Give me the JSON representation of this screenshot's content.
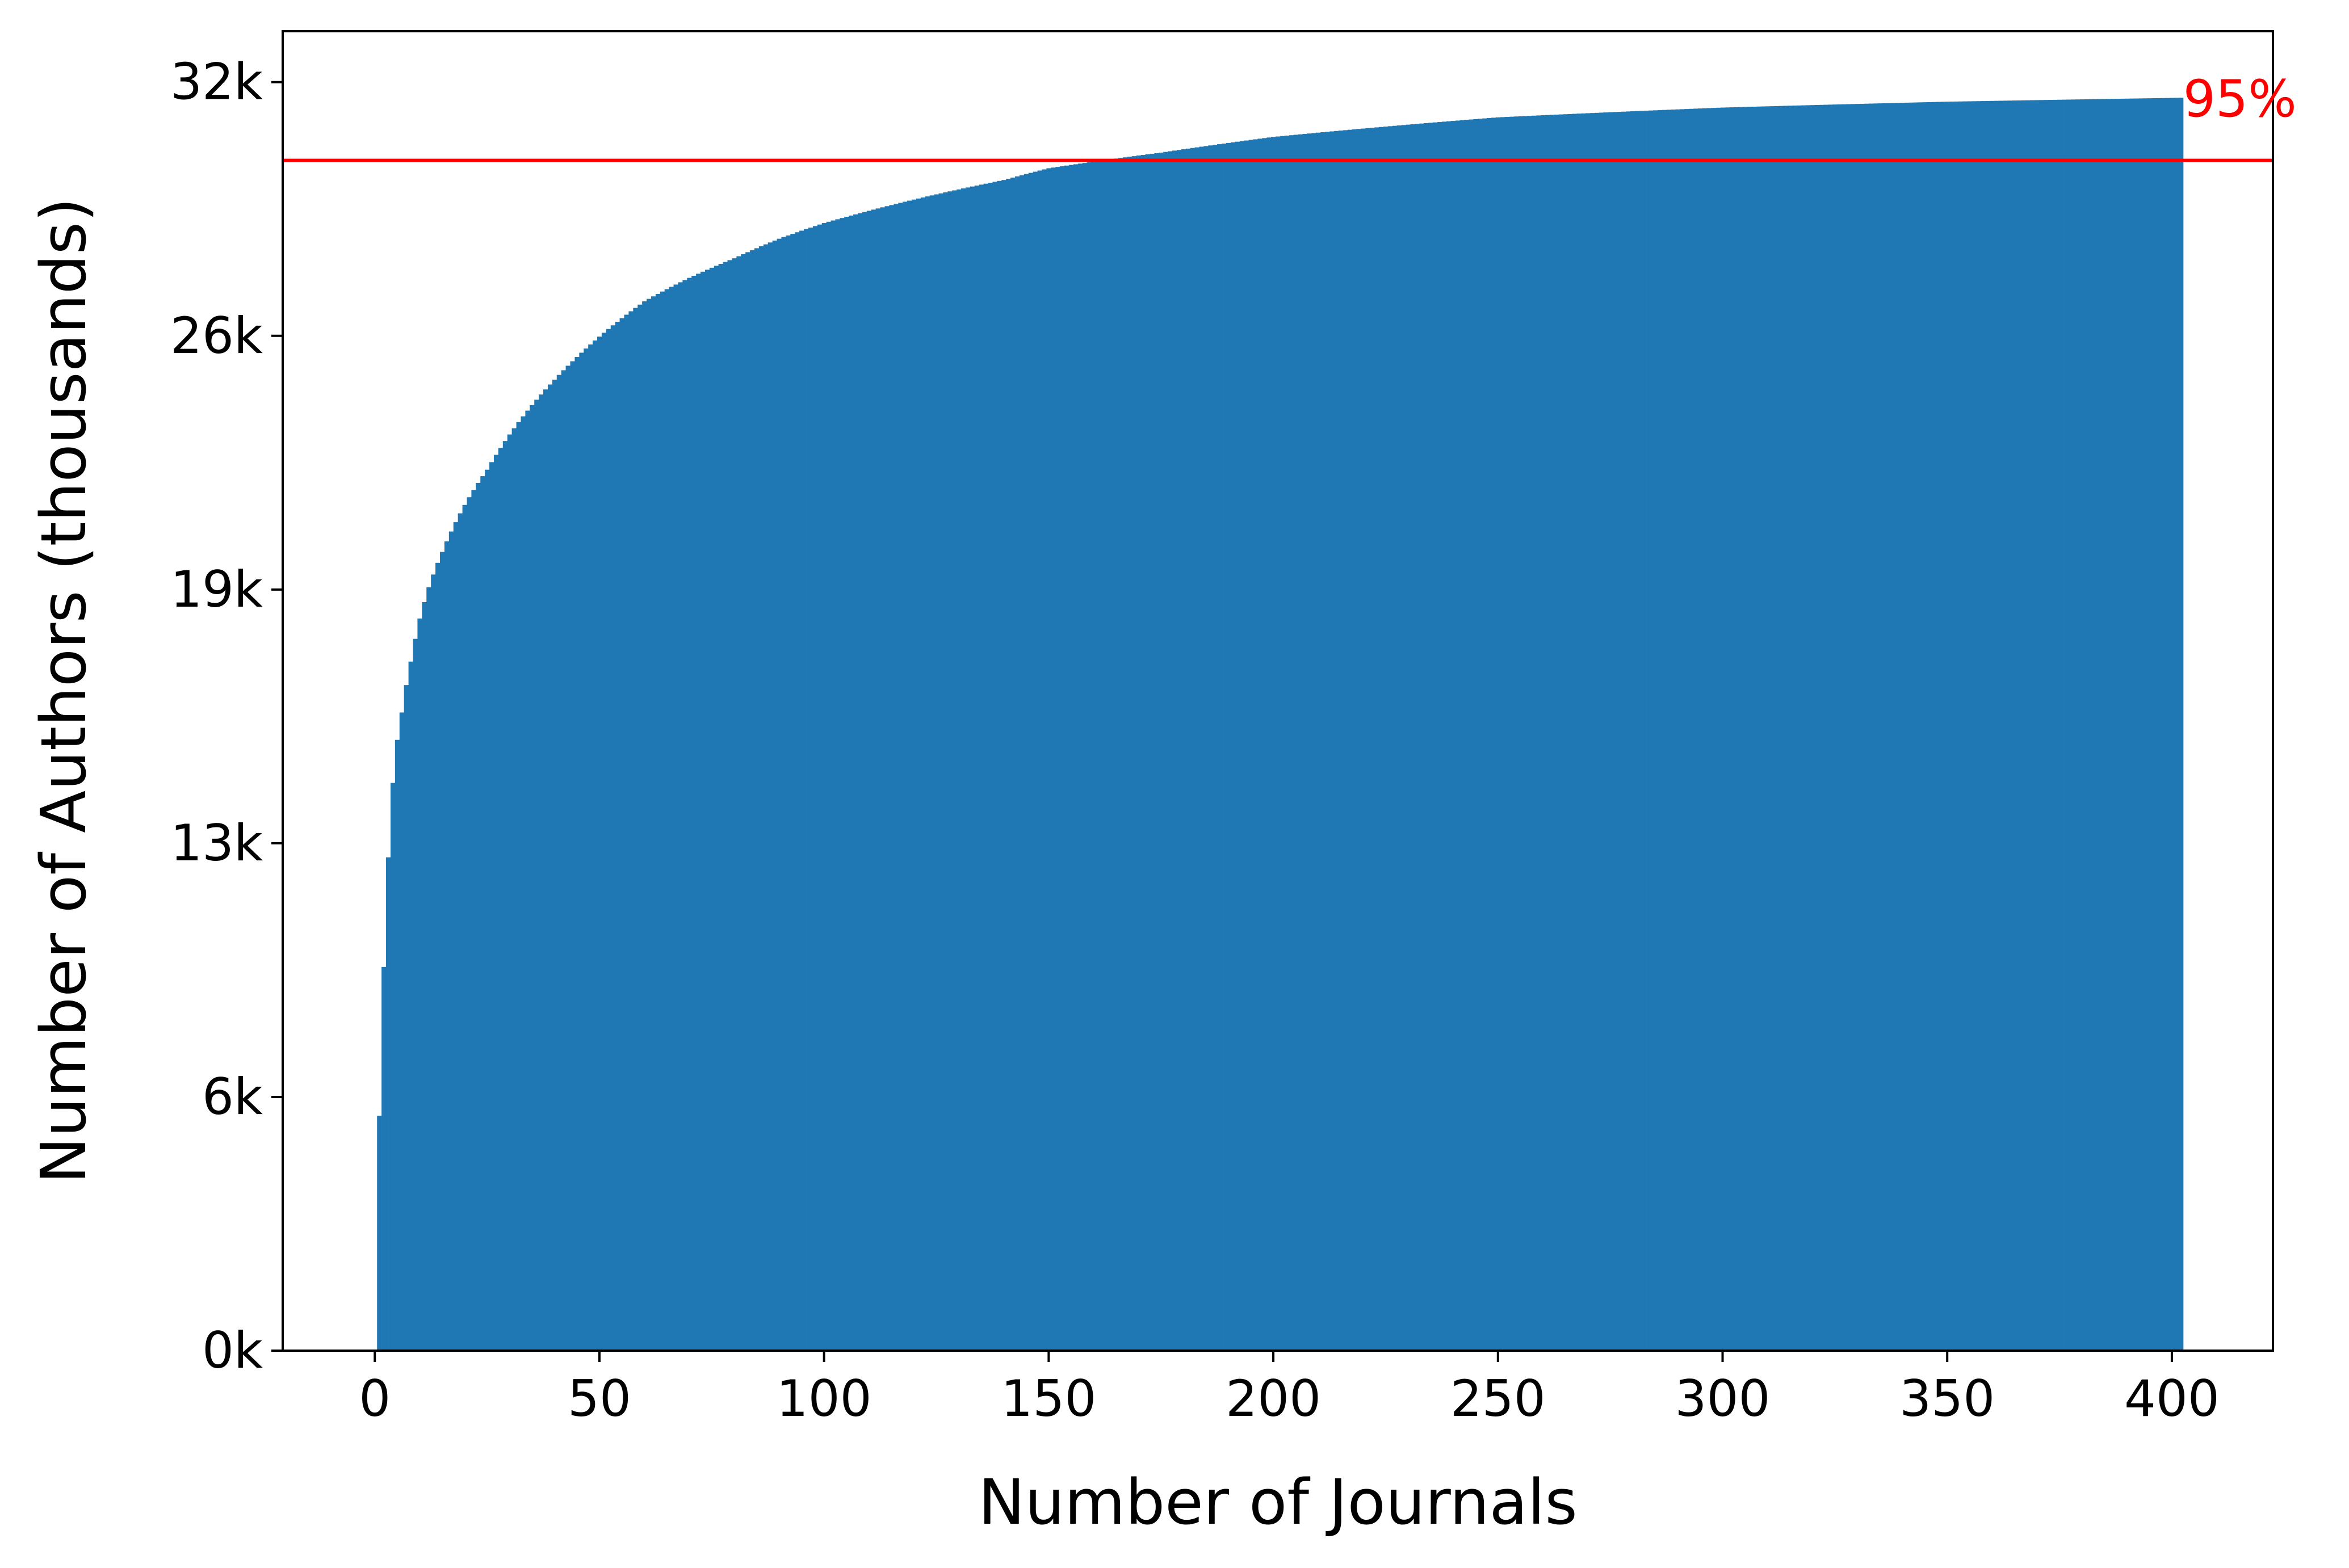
{
  "chart_data": {
    "type": "bar",
    "title": "",
    "xlabel": "Number of Journals",
    "ylabel": "Number of Authors (thousands)",
    "xlim": [
      -20.5,
      422.5
    ],
    "ylim": [
      0,
      33700
    ],
    "x_ticks": [
      0,
      50,
      100,
      150,
      200,
      250,
      300,
      350,
      400
    ],
    "x_tick_labels": [
      "0",
      "50",
      "100",
      "150",
      "200",
      "250",
      "300",
      "350",
      "400"
    ],
    "y_ticks": [
      0,
      6480,
      12960,
      19440,
      25920,
      32400
    ],
    "y_tick_labels": [
      "0k",
      "6k",
      "13k",
      "19k",
      "26k",
      "32k"
    ],
    "series_color": "#1f77b4",
    "bar_count": 402,
    "bar_width": 1,
    "description": "cumulative number of authors vs. number of journals, sorted by journal size",
    "cumulative_anchor_points": [
      {
        "x": 1,
        "y": 6000
      },
      {
        "x": 2,
        "y": 9800
      },
      {
        "x": 3,
        "y": 12600
      },
      {
        "x": 4,
        "y": 14500
      },
      {
        "x": 5,
        "y": 15600
      },
      {
        "x": 6,
        "y": 16300
      },
      {
        "x": 7,
        "y": 17000
      },
      {
        "x": 8,
        "y": 17600
      },
      {
        "x": 10,
        "y": 18700
      },
      {
        "x": 12,
        "y": 19500
      },
      {
        "x": 15,
        "y": 20400
      },
      {
        "x": 20,
        "y": 21600
      },
      {
        "x": 25,
        "y": 22500
      },
      {
        "x": 30,
        "y": 23400
      },
      {
        "x": 40,
        "y": 24800
      },
      {
        "x": 50,
        "y": 25900
      },
      {
        "x": 60,
        "y": 26800
      },
      {
        "x": 70,
        "y": 27400
      },
      {
        "x": 80,
        "y": 27900
      },
      {
        "x": 90,
        "y": 28400
      },
      {
        "x": 100,
        "y": 28800
      },
      {
        "x": 120,
        "y": 29400
      },
      {
        "x": 140,
        "y": 29900
      },
      {
        "x": 150,
        "y": 30200
      },
      {
        "x": 175,
        "y": 30600
      },
      {
        "x": 200,
        "y": 31000
      },
      {
        "x": 250,
        "y": 31500
      },
      {
        "x": 300,
        "y": 31750
      },
      {
        "x": 350,
        "y": 31900
      },
      {
        "x": 402,
        "y": 32000
      }
    ],
    "reference_line": {
      "y": 30400,
      "color": "#ff0000",
      "label": "95%"
    }
  }
}
